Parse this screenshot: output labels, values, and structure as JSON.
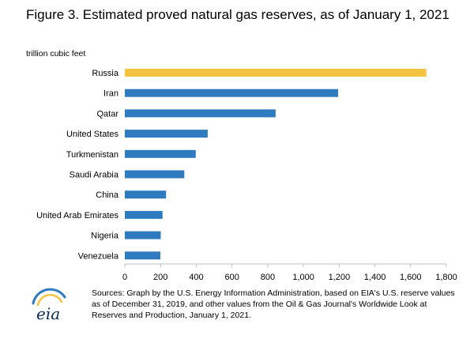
{
  "title": "Figure 3. Estimated proved natural gas reserves, as of January 1, 2021",
  "units_label": "trillion cubic feet",
  "source_text": "Sources: Graph by the U.S. Energy Information Administration, based on EIA's U.S. reserve values as of December 31, 2019, and other values from the Oil & Gas Journal's Worldwide Look at Reserves and Production, January 1, 2021.",
  "logo": {
    "text": "eia",
    "icon": "eia-logo-icon"
  },
  "colors": {
    "highlight": "#f5c342",
    "bar": "#2e7bbf",
    "tick": "#bfbfbf"
  },
  "chart_data": {
    "type": "bar",
    "orientation": "horizontal",
    "categories": [
      "Russia",
      "Iran",
      "Qatar",
      "United States",
      "Turkmenistan",
      "Saudi Arabia",
      "China",
      "United Arab Emirates",
      "Nigeria",
      "Venezuela"
    ],
    "values": [
      1688,
      1194,
      844,
      464,
      397,
      333,
      231,
      211,
      201,
      199
    ],
    "highlight_index": 0,
    "xlim": [
      0,
      1800
    ],
    "xticks": [
      0,
      200,
      400,
      600,
      800,
      1000,
      1200,
      1400,
      1600,
      1800
    ],
    "xtick_labels": [
      "0",
      "200",
      "400",
      "600",
      "800",
      "1,000",
      "1,200",
      "1,400",
      "1,600",
      "1,800"
    ],
    "xlabel": "",
    "ylabel": "trillion cubic feet",
    "grid": false,
    "legend": "none"
  }
}
